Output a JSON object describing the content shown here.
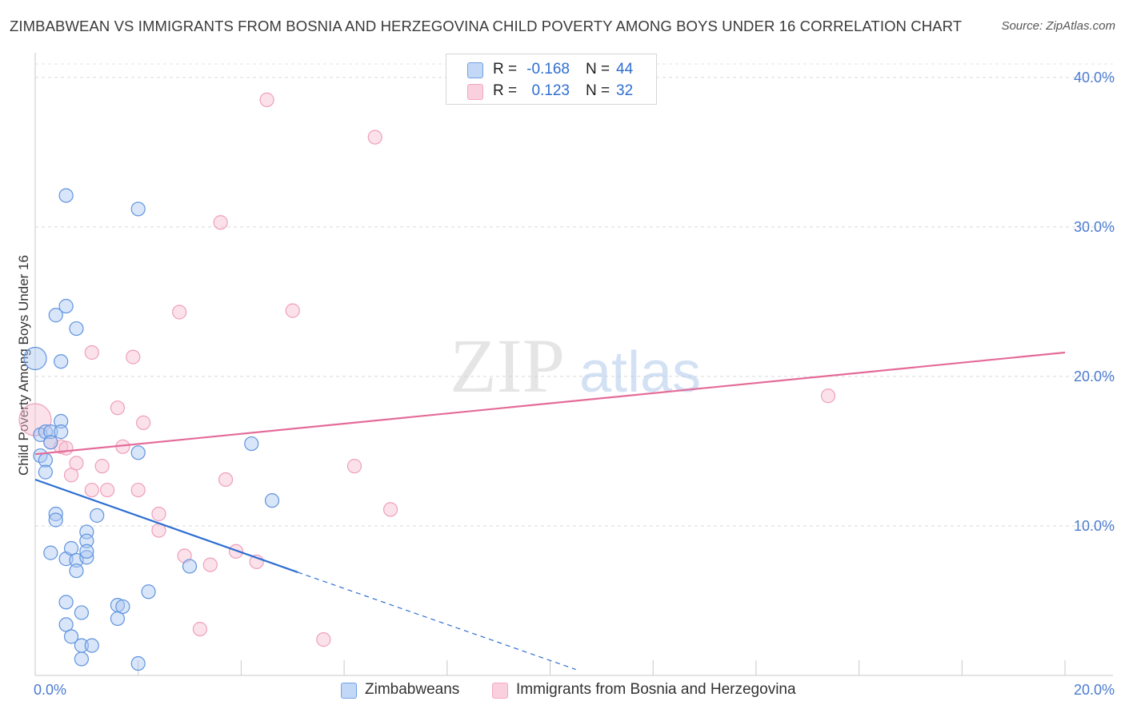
{
  "title": "ZIMBABWEAN VS IMMIGRANTS FROM BOSNIA AND HERZEGOVINA CHILD POVERTY AMONG BOYS UNDER 16 CORRELATION CHART",
  "source": "Source: ZipAtlas.com",
  "watermark": {
    "zip": "ZIP",
    "atlas": "atlas"
  },
  "legend": {
    "rows": [
      {
        "r_label": "R =",
        "r_value": "-0.168",
        "n_label": "N =",
        "n_value": "44"
      },
      {
        "r_label": "R =",
        "r_value": "0.123",
        "n_label": "N =",
        "n_value": "32"
      }
    ]
  },
  "chart_data": {
    "type": "scatter",
    "title": "ZIMBABWEAN VS IMMIGRANTS FROM BOSNIA AND HERZEGOVINA CHILD POVERTY AMONG BOYS UNDER 16 CORRELATION CHART",
    "xlabel": "",
    "ylabel": "Child Poverty Among Boys Under 16",
    "xlim": [
      0,
      20
    ],
    "ylim": [
      0,
      40
    ],
    "x_tick_labels": [
      "0.0%",
      "20.0%"
    ],
    "y_ticks": [
      10,
      20,
      30,
      40
    ],
    "y_tick_labels": [
      "10.0%",
      "20.0%",
      "30.0%",
      "40.0%"
    ],
    "grid": true,
    "colors": {
      "zimbabweans": "#6fa0e6",
      "bosnia": "#f2a8c0",
      "zim_line": "#2e6fd2",
      "bos_line": "#e46b98",
      "tick_text": "#4a7bd0"
    },
    "series": [
      {
        "name": "Zimbabweans",
        "color": "#6fa0e6",
        "r": -0.168,
        "n": 44,
        "trend": {
          "x": [
            0,
            5.1
          ],
          "y": [
            13.1,
            6.9
          ],
          "dashed_to": [
            10.5,
            0.4
          ]
        },
        "points": [
          [
            0,
            21.2
          ],
          [
            0.1,
            16.1
          ],
          [
            0.2,
            16.3
          ],
          [
            0.3,
            16.3
          ],
          [
            0.3,
            15.6
          ],
          [
            0.1,
            14.7
          ],
          [
            0.2,
            14.4
          ],
          [
            0.2,
            13.6
          ],
          [
            0.5,
            17.0
          ],
          [
            0.4,
            24.1
          ],
          [
            0.5,
            21.0
          ],
          [
            0.5,
            16.3
          ],
          [
            0.6,
            24.7
          ],
          [
            0.6,
            32.1
          ],
          [
            0.6,
            7.8
          ],
          [
            0.6,
            3.4
          ],
          [
            0.6,
            4.9
          ],
          [
            0.7,
            8.5
          ],
          [
            0.8,
            7.7
          ],
          [
            0.8,
            7.0
          ],
          [
            0.8,
            23.2
          ],
          [
            0.4,
            10.8
          ],
          [
            0.4,
            10.4
          ],
          [
            0.3,
            8.2
          ],
          [
            0.9,
            4.2
          ],
          [
            0.9,
            1.1
          ],
          [
            0.9,
            2.0
          ],
          [
            1.0,
            7.9
          ],
          [
            1.0,
            9.6
          ],
          [
            1.0,
            9.0
          ],
          [
            1.0,
            8.3
          ],
          [
            1.2,
            10.7
          ],
          [
            1.6,
            4.7
          ],
          [
            1.6,
            3.8
          ],
          [
            1.7,
            4.6
          ],
          [
            2.0,
            0.8
          ],
          [
            2.0,
            31.2
          ],
          [
            2.0,
            14.9
          ],
          [
            2.2,
            5.6
          ],
          [
            3.0,
            7.3
          ],
          [
            4.2,
            15.5
          ],
          [
            4.6,
            11.7
          ],
          [
            1.1,
            2.0
          ],
          [
            0.7,
            2.6
          ]
        ]
      },
      {
        "name": "Immigrants from Bosnia and Herzegovina",
        "color": "#f2a8c0",
        "r": 0.123,
        "n": 32,
        "trend": {
          "x": [
            0,
            20
          ],
          "y": [
            14.8,
            21.6
          ]
        },
        "points": [
          [
            0,
            17.1
          ],
          [
            0.3,
            15.6
          ],
          [
            0.5,
            15.3
          ],
          [
            0.6,
            15.2
          ],
          [
            0.7,
            13.4
          ],
          [
            0.8,
            14.2
          ],
          [
            1.1,
            12.4
          ],
          [
            1.1,
            21.6
          ],
          [
            1.3,
            14.0
          ],
          [
            1.4,
            12.4
          ],
          [
            1.6,
            17.9
          ],
          [
            1.7,
            15.3
          ],
          [
            1.9,
            21.3
          ],
          [
            2.0,
            12.4
          ],
          [
            2.1,
            16.9
          ],
          [
            2.4,
            10.8
          ],
          [
            2.4,
            9.7
          ],
          [
            2.8,
            24.3
          ],
          [
            2.9,
            8.0
          ],
          [
            3.2,
            3.1
          ],
          [
            3.4,
            7.4
          ],
          [
            3.6,
            30.3
          ],
          [
            3.7,
            13.1
          ],
          [
            3.9,
            8.3
          ],
          [
            4.3,
            7.6
          ],
          [
            4.5,
            38.5
          ],
          [
            5.0,
            24.4
          ],
          [
            5.6,
            2.4
          ],
          [
            6.2,
            14.0
          ],
          [
            6.6,
            36.0
          ],
          [
            6.9,
            11.1
          ],
          [
            15.4,
            18.7
          ]
        ]
      }
    ]
  },
  "bottom_legend": [
    "Zimbabweans",
    "Immigrants from Bosnia and Herzegovina"
  ]
}
